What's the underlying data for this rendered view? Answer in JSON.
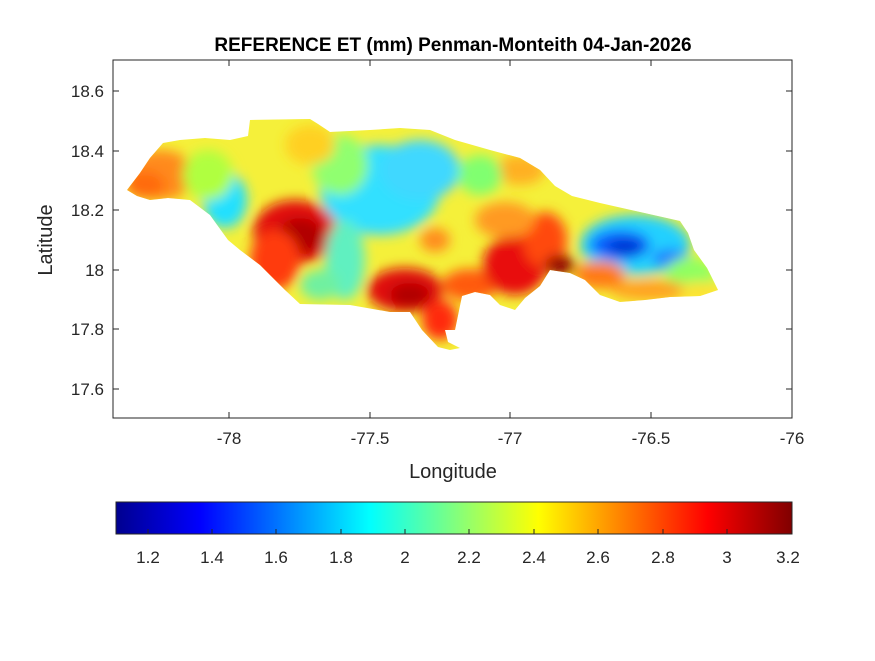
{
  "map": {
    "title": "REFERENCE ET (mm) Penman-Monteith 04-Jan-2026",
    "xlabel": "Longitude",
    "ylabel": "Latitude",
    "x_ticks": [
      "-78",
      "-77.5",
      "-77",
      "-76.5",
      "-76"
    ],
    "y_ticks": [
      "18.6",
      "18.4",
      "18.2",
      "18",
      "17.8",
      "17.6"
    ],
    "xlim": [
      -78.42,
      -76.0
    ],
    "ylim": [
      17.5,
      18.7
    ],
    "colormap": "jet",
    "colorbar": {
      "range": [
        1.1,
        3.2
      ],
      "ticks": [
        "1.2",
        "1.4",
        "1.6",
        "1.8",
        "2",
        "2.2",
        "2.4",
        "2.6",
        "2.8",
        "3",
        "3.2"
      ]
    }
  }
}
